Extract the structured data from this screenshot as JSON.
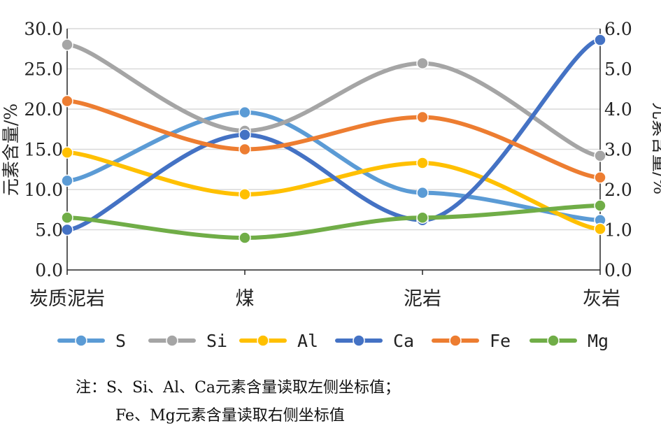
{
  "chart_data": {
    "type": "line",
    "smooth": true,
    "categories": [
      "炭质泥岩",
      "煤",
      "泥岩",
      "灰岩"
    ],
    "ylabel_left": "元素含量/%",
    "ylabel_right": "元素含量/%",
    "ylim_left": [
      0,
      30
    ],
    "ylim_right": [
      0,
      6
    ],
    "yticks_left": [
      "0.0",
      "5.0",
      "10.0",
      "15.0",
      "20.0",
      "25.0",
      "30.0"
    ],
    "yticks_right": [
      "0.0",
      "1.0",
      "2.0",
      "3.0",
      "4.0",
      "5.0",
      "6.0"
    ],
    "grid": true,
    "legend_position": "bottom",
    "series": [
      {
        "name": "S",
        "axis": "left",
        "color": "#5b9bd5",
        "values": [
          11.1,
          19.6,
          9.6,
          6.2
        ]
      },
      {
        "name": "Si",
        "axis": "left",
        "color": "#a5a5a5",
        "values": [
          28.0,
          17.3,
          25.7,
          14.2
        ]
      },
      {
        "name": "Al",
        "axis": "left",
        "color": "#ffc000",
        "values": [
          14.6,
          9.4,
          13.3,
          5.1
        ]
      },
      {
        "name": "Ca",
        "axis": "left",
        "color": "#4472c4",
        "values": [
          5.0,
          16.8,
          6.2,
          28.6
        ]
      },
      {
        "name": "Fe",
        "axis": "right",
        "color": "#ed7d31",
        "values": [
          4.2,
          3.0,
          3.8,
          2.3
        ]
      },
      {
        "name": "Mg",
        "axis": "right",
        "color": "#70ad47",
        "values": [
          1.3,
          0.8,
          1.3,
          1.6
        ]
      }
    ]
  },
  "note": {
    "line1": "注：S、Si、Al、Ca元素含量读取左侧坐标值；",
    "line2": "Fe、Mg元素含量读取右侧坐标值"
  }
}
